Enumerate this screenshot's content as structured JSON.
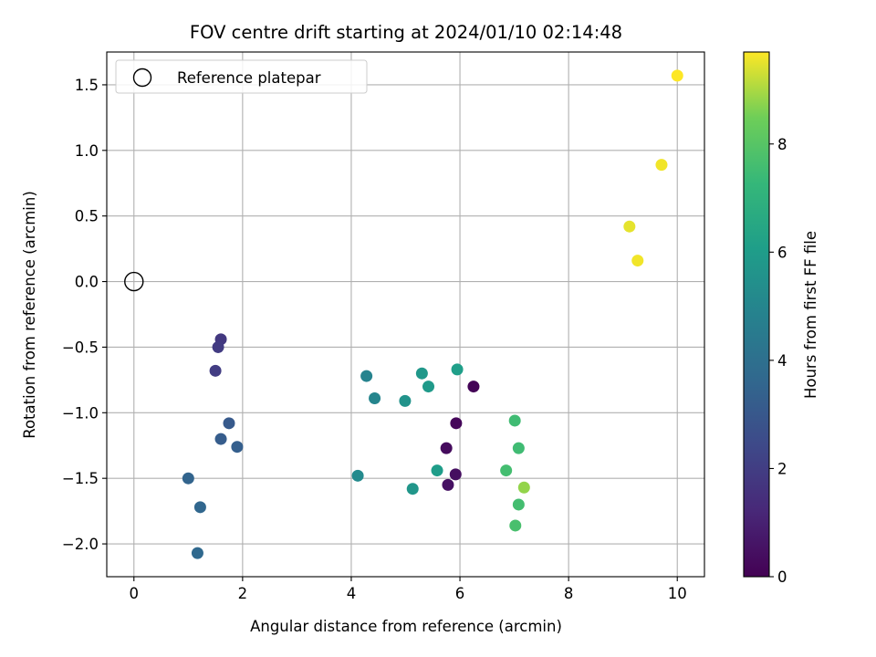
{
  "chart_data": {
    "type": "scatter",
    "title": "FOV centre drift starting at 2024/01/10 02:14:48",
    "xlabel": "Angular distance from reference (arcmin)",
    "ylabel": "Rotation from reference (arcmin)",
    "xlim": [
      -0.5,
      10.5
    ],
    "ylim": [
      -2.25,
      1.75
    ],
    "xticks": [
      0,
      2,
      4,
      6,
      8,
      10
    ],
    "yticks": [
      -2.0,
      -1.5,
      -1.0,
      -0.5,
      0.0,
      0.5,
      1.0,
      1.5
    ],
    "grid": true,
    "legend": {
      "label": "Reference platepar",
      "placement": "top-left",
      "marker": "hollow circle"
    },
    "reference_point": {
      "x": 0,
      "y": 0
    },
    "colorbar": {
      "label": "Hours from first FF file",
      "colormap": "viridis",
      "range": [
        0,
        9.7
      ],
      "ticks": [
        0,
        2,
        4,
        6,
        8
      ]
    },
    "points": [
      {
        "x": 6.25,
        "y": -0.8,
        "c": 0.1
      },
      {
        "x": 5.93,
        "y": -1.08,
        "c": 0.2
      },
      {
        "x": 5.75,
        "y": -1.27,
        "c": 0.3
      },
      {
        "x": 5.92,
        "y": -1.47,
        "c": 0.4
      },
      {
        "x": 5.78,
        "y": -1.55,
        "c": 0.5
      },
      {
        "x": 1.6,
        "y": -0.44,
        "c": 1.8
      },
      {
        "x": 1.55,
        "y": -0.5,
        "c": 1.9
      },
      {
        "x": 1.5,
        "y": -0.68,
        "c": 2.0
      },
      {
        "x": 1.75,
        "y": -1.08,
        "c": 3.1
      },
      {
        "x": 1.6,
        "y": -1.2,
        "c": 3.2
      },
      {
        "x": 1.9,
        "y": -1.26,
        "c": 3.3
      },
      {
        "x": 1.0,
        "y": -1.5,
        "c": 3.5
      },
      {
        "x": 1.22,
        "y": -1.72,
        "c": 3.6
      },
      {
        "x": 1.17,
        "y": -2.07,
        "c": 3.7
      },
      {
        "x": 4.28,
        "y": -0.72,
        "c": 4.9
      },
      {
        "x": 4.43,
        "y": -0.89,
        "c": 5.0
      },
      {
        "x": 4.12,
        "y": -1.48,
        "c": 5.2
      },
      {
        "x": 4.99,
        "y": -0.91,
        "c": 5.6
      },
      {
        "x": 5.13,
        "y": -1.58,
        "c": 5.7
      },
      {
        "x": 5.3,
        "y": -0.7,
        "c": 5.8
      },
      {
        "x": 5.42,
        "y": -0.8,
        "c": 5.9
      },
      {
        "x": 5.58,
        "y": -1.44,
        "c": 6.0
      },
      {
        "x": 5.95,
        "y": -0.67,
        "c": 6.1
      },
      {
        "x": 7.01,
        "y": -1.06,
        "c": 7.5
      },
      {
        "x": 7.08,
        "y": -1.27,
        "c": 7.5
      },
      {
        "x": 6.85,
        "y": -1.44,
        "c": 7.6
      },
      {
        "x": 7.08,
        "y": -1.7,
        "c": 7.6
      },
      {
        "x": 7.02,
        "y": -1.86,
        "c": 7.7
      },
      {
        "x": 7.18,
        "y": -1.57,
        "c": 8.8
      },
      {
        "x": 9.12,
        "y": 0.42,
        "c": 9.5
      },
      {
        "x": 9.27,
        "y": 0.16,
        "c": 9.6
      },
      {
        "x": 9.71,
        "y": 0.89,
        "c": 9.6
      },
      {
        "x": 10.0,
        "y": 1.57,
        "c": 9.7
      }
    ]
  }
}
